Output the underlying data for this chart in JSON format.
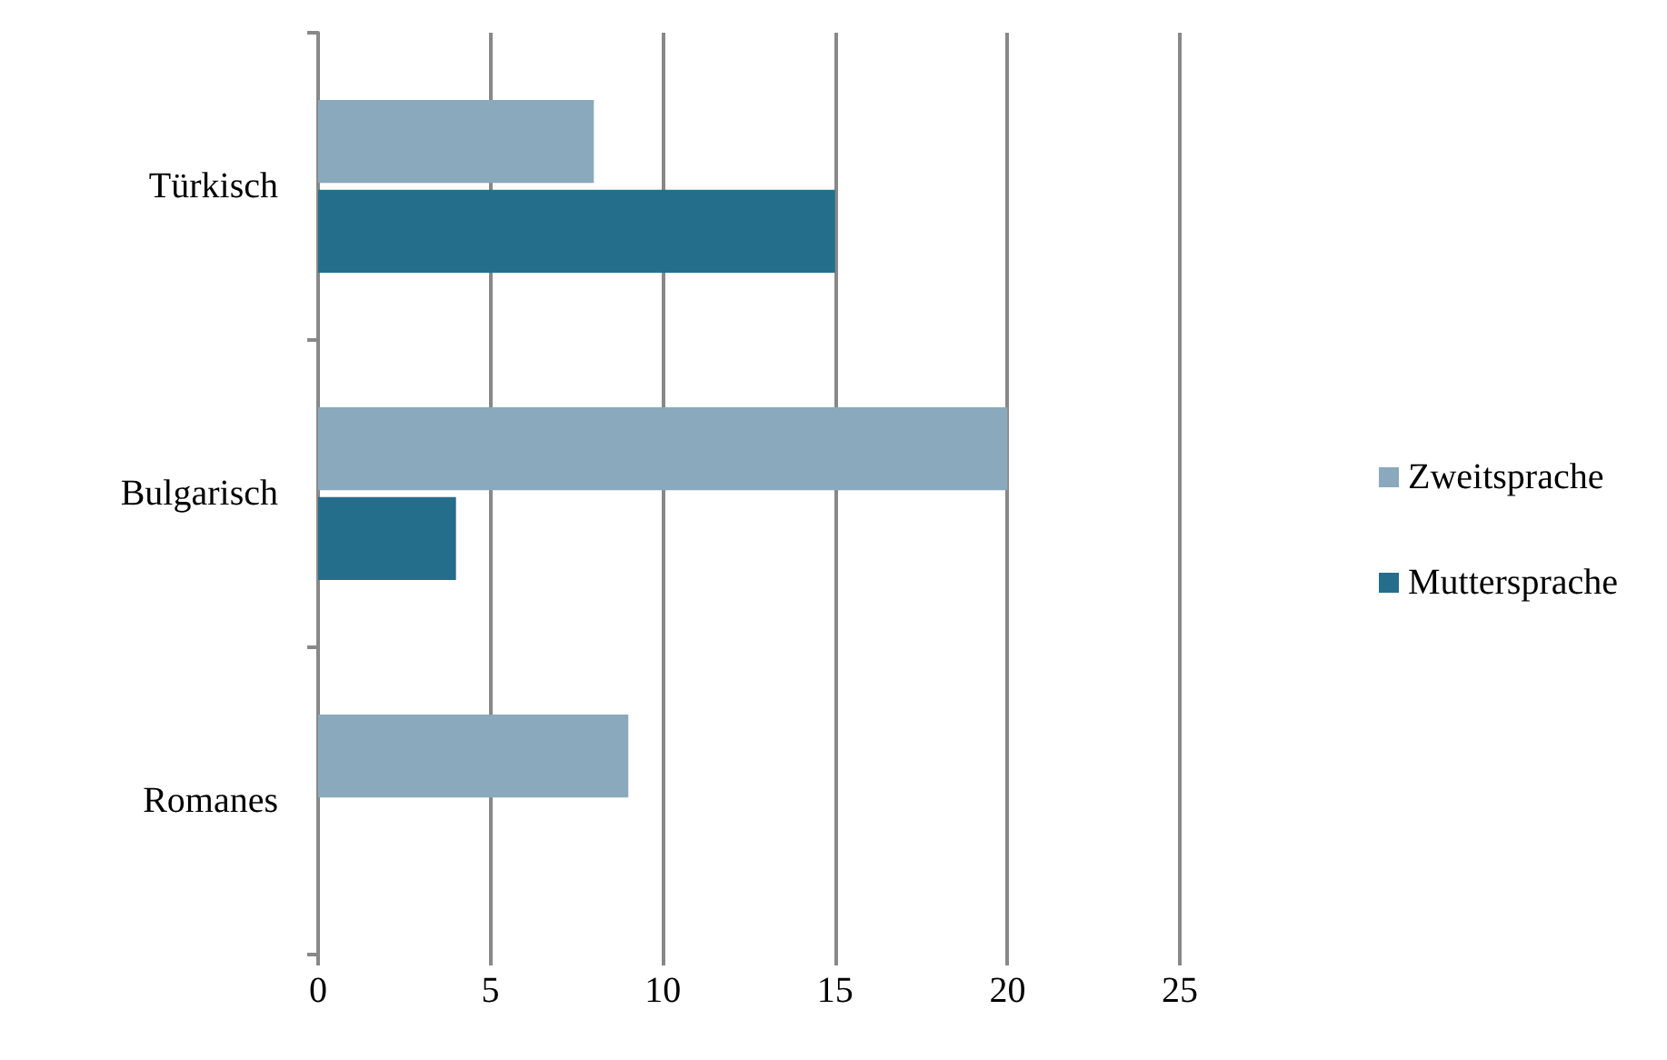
{
  "chart_data": {
    "type": "bar",
    "orientation": "horizontal",
    "categories": [
      "Türkisch",
      "Bulgarisch",
      "Romanes"
    ],
    "series": [
      {
        "name": "Zweitsprache",
        "color": "#8aa9bc",
        "values": [
          8,
          20,
          9
        ]
      },
      {
        "name": "Muttersprache",
        "color": "#246e8b",
        "values": [
          15,
          4,
          0
        ]
      }
    ],
    "xlim": [
      0,
      25
    ],
    "xticks": [
      0,
      5,
      10,
      15,
      20,
      25
    ],
    "grid": "x",
    "legend": "right"
  }
}
